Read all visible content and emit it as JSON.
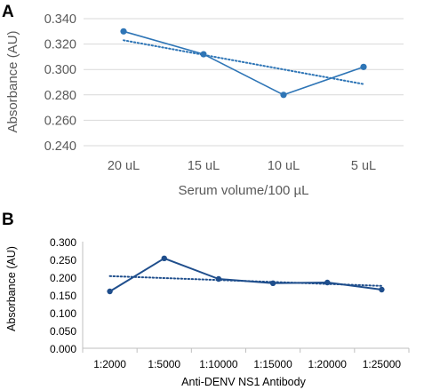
{
  "chart_data": [
    {
      "panel": "A",
      "type": "line",
      "categories": [
        "20 uL",
        "15 uL",
        "10 uL",
        "5 uL"
      ],
      "series": [
        {
          "values": [
            0.33,
            0.312,
            0.28,
            0.302
          ],
          "color": "#2E75B6"
        }
      ],
      "trendline": {
        "values": [
          0.323,
          0.3115,
          0.3,
          0.2885
        ],
        "style": "dotted",
        "color": "#2E75B6"
      },
      "xlabel": "Serum volume/100 µL",
      "ylabel": "Absorbance (AU)",
      "ylim": [
        0.24,
        0.34
      ],
      "yticks": [
        "0.240",
        "0.260",
        "0.280",
        "0.300",
        "0.320",
        "0.340"
      ],
      "grid": "horizontal"
    },
    {
      "panel": "B",
      "type": "line",
      "categories": [
        "1:2000",
        "1:5000",
        "1:10000",
        "1:15000",
        "1:20000",
        "1:25000"
      ],
      "series": [
        {
          "values": [
            0.16,
            0.253,
            0.195,
            0.183,
            0.185,
            0.165
          ],
          "color": "#1F4E8C"
        }
      ],
      "trendline": {
        "values": [
          0.203,
          0.1975,
          0.192,
          0.1865,
          0.181,
          0.1755
        ],
        "style": "dotted",
        "color": "#1F4E8C"
      },
      "xlabel": "Anti-DENV NS1 Antibody",
      "ylabel": "Absorbance (AU)",
      "ylim": [
        0.0,
        0.3
      ],
      "yticks": [
        "0.000",
        "0.050",
        "0.100",
        "0.150",
        "0.200",
        "0.250",
        "0.300"
      ],
      "grid": "none"
    }
  ]
}
